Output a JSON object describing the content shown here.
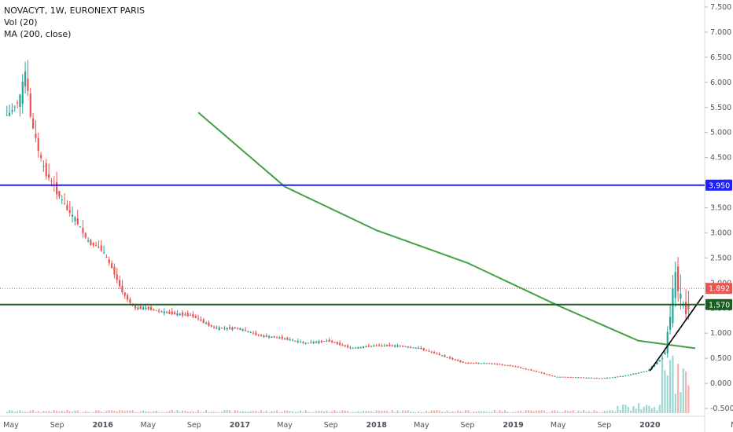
{
  "legend": {
    "title": "NOVACYT, 1W, EURONEXT PARIS",
    "vol": "Vol (20)",
    "ma": "MA (200, close)"
  },
  "chart_data": {
    "type": "candlestick",
    "symbol": "NOVACYT",
    "interval": "1W",
    "exchange": "EURONEXT PARIS",
    "ylim": [
      -0.5,
      7.5
    ],
    "y_ticks": [
      "7.500",
      "7.000",
      "6.500",
      "6.000",
      "5.500",
      "5.000",
      "4.500",
      "4.000",
      "3.500",
      "3.000",
      "2.500",
      "2.000",
      "1.500",
      "1.000",
      "0.500",
      "0.000",
      "-0.500"
    ],
    "x_ticks": [
      "May",
      "Sep",
      "2016",
      "May",
      "Sep",
      "2017",
      "May",
      "Sep",
      "2018",
      "May",
      "Sep",
      "2019",
      "May",
      "Sep",
      "2020",
      "May"
    ],
    "horizontal_lines": [
      {
        "value": 3.95,
        "label": "3.950",
        "color": "#1f1fff"
      },
      {
        "value": 1.57,
        "label": "1.570",
        "color": "#1b5e20"
      }
    ],
    "last_price": {
      "value": 1.892,
      "label": "1.892",
      "color": "#ef5350"
    },
    "up_color": "#26a69a",
    "down_color": "#ef5350",
    "ma_color": "#43a047",
    "ma_line": [
      {
        "date": "2016-09-12",
        "value": 5.4
      },
      {
        "date": "2017-05-01",
        "value": 3.92
      },
      {
        "date": "2018-01-01",
        "value": 3.05
      },
      {
        "date": "2018-09-01",
        "value": 2.4
      },
      {
        "date": "2019-05-01",
        "value": 1.55
      },
      {
        "date": "2019-12-01",
        "value": 0.85
      },
      {
        "date": "2020-05-01",
        "value": 0.7
      }
    ],
    "trendline": [
      {
        "date": "2020-01-01",
        "value": 0.25
      },
      {
        "date": "2020-05-01",
        "value": 1.75
      }
    ],
    "price_series": [
      [
        "2015-05-01",
        5.35
      ],
      [
        "2015-06-01",
        5.7
      ],
      [
        "2015-06-15",
        6.2
      ],
      [
        "2015-07-01",
        5.2
      ],
      [
        "2015-08-01",
        4.3
      ],
      [
        "2015-09-01",
        3.9
      ],
      [
        "2015-10-01",
        3.5
      ],
      [
        "2015-11-01",
        3.2
      ],
      [
        "2015-12-01",
        2.8
      ],
      [
        "2016-01-01",
        2.7
      ],
      [
        "2016-02-01",
        2.3
      ],
      [
        "2016-03-01",
        1.8
      ],
      [
        "2016-04-01",
        1.5
      ],
      [
        "2016-05-01",
        1.5
      ],
      [
        "2016-07-01",
        1.4
      ],
      [
        "2016-09-01",
        1.35
      ],
      [
        "2016-11-01",
        1.1
      ],
      [
        "2017-01-01",
        1.1
      ],
      [
        "2017-03-01",
        0.95
      ],
      [
        "2017-05-01",
        0.9
      ],
      [
        "2017-07-01",
        0.8
      ],
      [
        "2017-09-01",
        0.85
      ],
      [
        "2017-11-01",
        0.7
      ],
      [
        "2018-01-01",
        0.75
      ],
      [
        "2018-03-01",
        0.75
      ],
      [
        "2018-05-01",
        0.7
      ],
      [
        "2018-07-01",
        0.55
      ],
      [
        "2018-09-01",
        0.4
      ],
      [
        "2018-11-01",
        0.4
      ],
      [
        "2019-01-01",
        0.35
      ],
      [
        "2019-03-01",
        0.25
      ],
      [
        "2019-05-01",
        0.13
      ],
      [
        "2019-07-01",
        0.12
      ],
      [
        "2019-09-01",
        0.1
      ],
      [
        "2019-11-01",
        0.15
      ],
      [
        "2020-01-01",
        0.25
      ],
      [
        "2020-02-15",
        0.55
      ],
      [
        "2020-03-01",
        1.3
      ],
      [
        "2020-03-15",
        2.2
      ],
      [
        "2020-04-01",
        1.6
      ],
      [
        "2020-04-15",
        1.4
      ],
      [
        "2020-05-01",
        1.89
      ]
    ]
  }
}
